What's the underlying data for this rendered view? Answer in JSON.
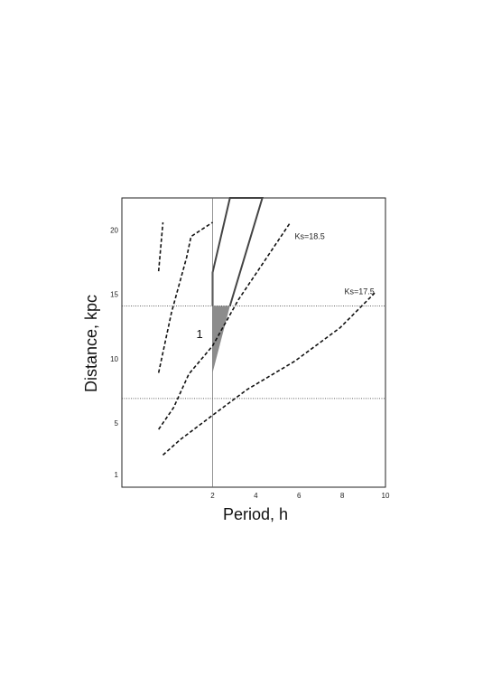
{
  "chart_data": {
    "type": "line",
    "xlabel": "Period, h",
    "ylabel": "Distance, kpc",
    "xlim": [
      -2.2,
      10
    ],
    "ylim": [
      0,
      22.5
    ],
    "x_ticks": [
      {
        "value": 2,
        "label": "2"
      },
      {
        "value": 4,
        "label": "4"
      },
      {
        "value": 6,
        "label": "6"
      },
      {
        "value": 8,
        "label": "8"
      },
      {
        "value": 10,
        "label": "10"
      }
    ],
    "y_ticks": [
      {
        "value": 1,
        "label": "1"
      },
      {
        "value": 5,
        "label": "5"
      },
      {
        "value": 10,
        "label": "10"
      },
      {
        "value": 15,
        "label": "15"
      },
      {
        "value": 20,
        "label": "20"
      }
    ],
    "horizontal_lines": [
      {
        "y": 14.1,
        "style": "dotted"
      },
      {
        "y": 6.9,
        "style": "dotted"
      }
    ],
    "vertical_lines": [
      {
        "x": 2,
        "style": "thin-solid"
      }
    ],
    "dashed_curves": [
      {
        "points": [
          [
            -0.5,
            16.8
          ],
          [
            -0.3,
            20.6
          ]
        ]
      },
      {
        "points": [
          [
            -0.5,
            8.9
          ],
          [
            0.1,
            13.6
          ],
          [
            0.8,
            17.9
          ],
          [
            1.0,
            19.5
          ],
          [
            2.0,
            20.6
          ]
        ]
      },
      {
        "points": [
          [
            -0.5,
            4.5
          ],
          [
            0.2,
            6.2
          ],
          [
            0.9,
            8.8
          ],
          [
            2.0,
            11.0
          ],
          [
            3.2,
            14.6
          ],
          [
            4.4,
            17.6
          ],
          [
            5.6,
            20.6
          ]
        ]
      },
      {
        "points": [
          [
            -0.3,
            2.5
          ],
          [
            0.5,
            3.7
          ],
          [
            2.0,
            5.6
          ],
          [
            3.6,
            7.6
          ],
          [
            5.8,
            9.8
          ],
          [
            7.9,
            12.4
          ],
          [
            9.5,
            15.1
          ]
        ],
        "label": "Ks=17.5"
      }
    ],
    "curve_labels": [
      {
        "text": "Ks=18.5",
        "x": 5.8,
        "y": 19.3
      },
      {
        "text": "Ks=17.5",
        "x": 8.1,
        "y": 15.0
      }
    ],
    "outlined_region": {
      "points": [
        [
          2.0,
          14.1
        ],
        [
          2.0,
          16.7
        ],
        [
          2.8,
          22.5
        ],
        [
          4.3,
          22.5
        ],
        [
          2.8,
          14.1
        ]
      ]
    },
    "shaded_region": {
      "points": [
        [
          2.0,
          8.9
        ],
        [
          2.0,
          14.1
        ],
        [
          2.8,
          14.1
        ]
      ],
      "color": "#8c8c8c"
    },
    "region_label": {
      "text": "1",
      "x": 1.4,
      "y": 11.6
    },
    "legend": "none",
    "grid": false
  }
}
